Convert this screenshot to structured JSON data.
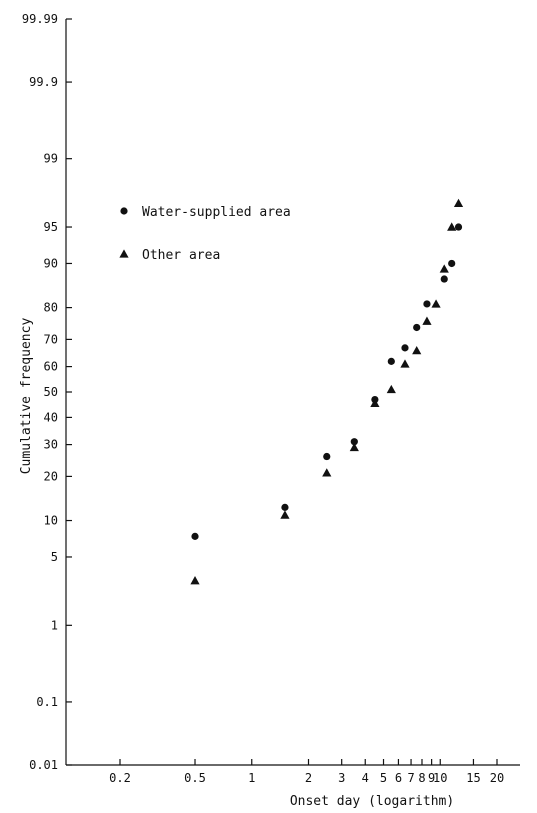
{
  "chart_data": {
    "type": "scatter",
    "title": "",
    "xlabel": "Onset day (logarithm)",
    "ylabel": "Cumulative frequency",
    "x_scale": "log",
    "y_scale": "probability",
    "xlim": [
      0.12,
      25
    ],
    "ylim": [
      0.01,
      99.99
    ],
    "grid": false,
    "legend_position": "top-left",
    "x_ticks": [
      {
        "v": 0.2,
        "label": "0.2"
      },
      {
        "v": 0.5,
        "label": "0.5"
      },
      {
        "v": 1,
        "label": "1"
      },
      {
        "v": 2,
        "label": "2"
      },
      {
        "v": 3,
        "label": "3"
      },
      {
        "v": 4,
        "label": "4"
      },
      {
        "v": 5,
        "label": "5"
      },
      {
        "v": 6,
        "label": "6"
      },
      {
        "v": 7,
        "label": "7"
      },
      {
        "v": 8,
        "label": "8"
      },
      {
        "v": 9,
        "label": "9"
      },
      {
        "v": 10,
        "label": "10"
      },
      {
        "v": 15,
        "label": "15"
      },
      {
        "v": 20,
        "label": "20"
      }
    ],
    "y_ticks": [
      {
        "v": 0.01,
        "label": "0.01"
      },
      {
        "v": 0.1,
        "label": "0.1"
      },
      {
        "v": 1,
        "label": "1"
      },
      {
        "v": 5,
        "label": "5"
      },
      {
        "v": 10,
        "label": "10"
      },
      {
        "v": 20,
        "label": "20"
      },
      {
        "v": 30,
        "label": "30"
      },
      {
        "v": 40,
        "label": "40"
      },
      {
        "v": 50,
        "label": "50"
      },
      {
        "v": 60,
        "label": "60"
      },
      {
        "v": 70,
        "label": "70"
      },
      {
        "v": 80,
        "label": "80"
      },
      {
        "v": 90,
        "label": "90"
      },
      {
        "v": 95,
        "label": "95"
      },
      {
        "v": 99,
        "label": "99"
      },
      {
        "v": 99.9,
        "label": "99.9"
      },
      {
        "v": 99.99,
        "label": "99.99"
      }
    ],
    "series": [
      {
        "name": "Water-supplied area",
        "marker": "circle",
        "color": "#111111",
        "points": [
          {
            "x": 0.5,
            "y": 7.5
          },
          {
            "x": 1.5,
            "y": 12.5
          },
          {
            "x": 2.5,
            "y": 26
          },
          {
            "x": 3.5,
            "y": 31
          },
          {
            "x": 4.5,
            "y": 47
          },
          {
            "x": 5.5,
            "y": 62
          },
          {
            "x": 6.5,
            "y": 67
          },
          {
            "x": 7.5,
            "y": 74
          },
          {
            "x": 8.5,
            "y": 81
          },
          {
            "x": 10.5,
            "y": 87
          },
          {
            "x": 11.5,
            "y": 90
          },
          {
            "x": 12.5,
            "y": 95
          }
        ]
      },
      {
        "name": "Other area",
        "marker": "triangle",
        "color": "#111111",
        "points": [
          {
            "x": 0.5,
            "y": 3
          },
          {
            "x": 1.5,
            "y": 11
          },
          {
            "x": 2.5,
            "y": 21
          },
          {
            "x": 3.5,
            "y": 29
          },
          {
            "x": 4.5,
            "y": 45.5
          },
          {
            "x": 5.5,
            "y": 51
          },
          {
            "x": 6.5,
            "y": 61
          },
          {
            "x": 7.5,
            "y": 66
          },
          {
            "x": 8.5,
            "y": 76
          },
          {
            "x": 9.5,
            "y": 81
          },
          {
            "x": 10.5,
            "y": 89
          },
          {
            "x": 11.5,
            "y": 95
          },
          {
            "x": 12.5,
            "y": 97
          }
        ]
      }
    ]
  }
}
